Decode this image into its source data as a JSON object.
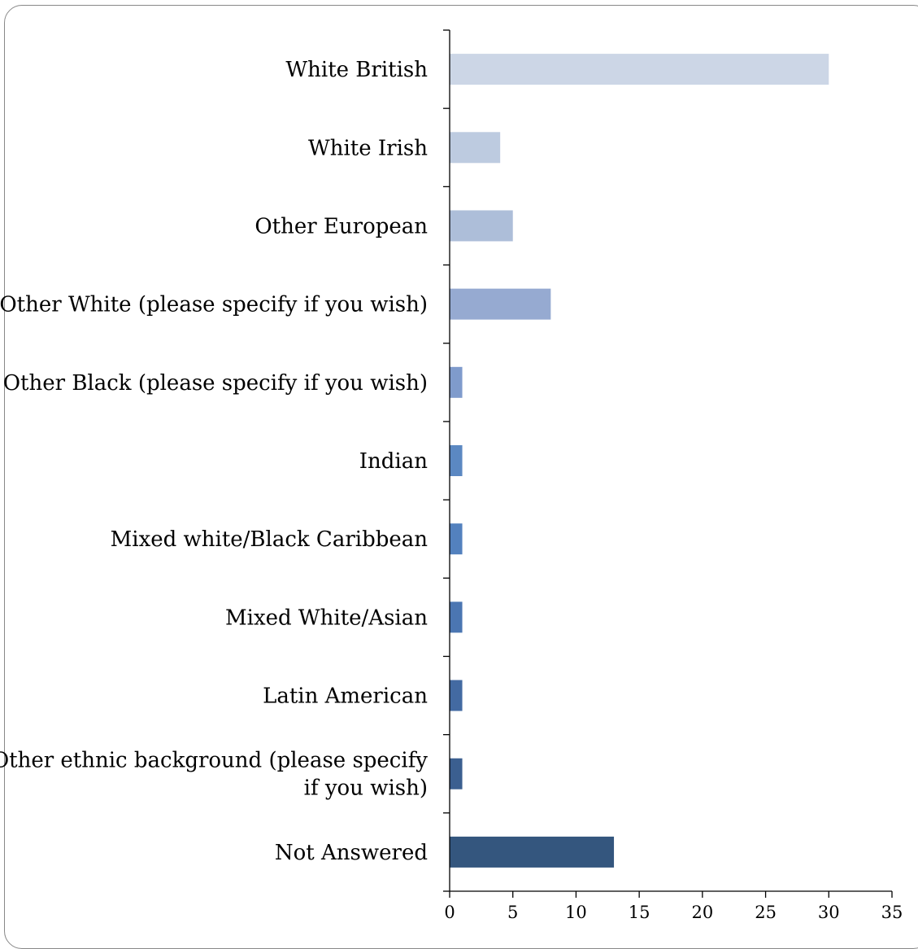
{
  "chart_data": {
    "type": "bar",
    "orientation": "horizontal",
    "title": "",
    "xlabel": "",
    "ylabel": "",
    "categories": [
      [
        "White British"
      ],
      [
        "White Irish"
      ],
      [
        "Other European"
      ],
      [
        "Other White (please specify if you wish)"
      ],
      [
        "Other Black (please specify if you wish)"
      ],
      [
        "Indian"
      ],
      [
        "Mixed white/Black Caribbean"
      ],
      [
        "Mixed White/Asian"
      ],
      [
        "Latin American"
      ],
      [
        "Other ethnic background (please specify",
        "if you wish)"
      ],
      [
        "Not Answered"
      ]
    ],
    "values": [
      30,
      4,
      5,
      8,
      1,
      1,
      1,
      1,
      1,
      1,
      13
    ],
    "bar_colors": [
      "#ccd6e6",
      "#bdcbe0",
      "#adbed9",
      "#96aad1",
      "#7f9bcc",
      "#5b88c2",
      "#5381be",
      "#4b76b2",
      "#436aa2",
      "#3b5f90",
      "#34567e"
    ],
    "xlim": [
      0,
      35
    ],
    "xticks": [
      0,
      5,
      10,
      15,
      20,
      25,
      30,
      35
    ],
    "grid": false,
    "legend": "none"
  }
}
